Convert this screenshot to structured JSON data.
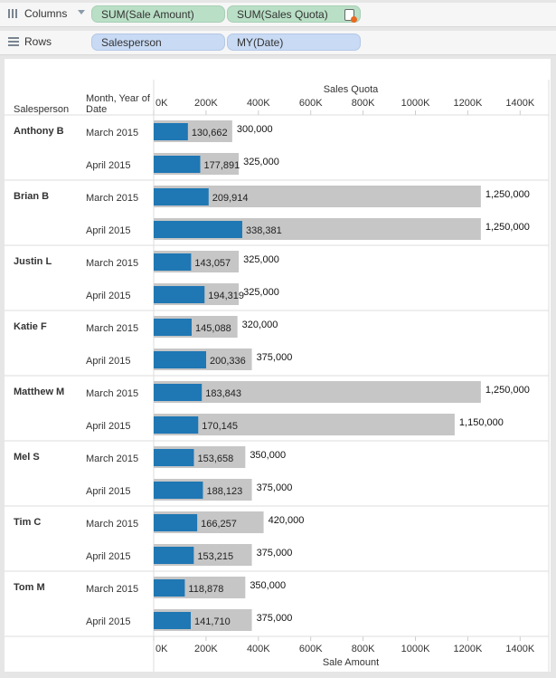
{
  "shelves": {
    "columns": {
      "label": "Columns",
      "pills": [
        "SUM(Sale Amount)",
        "SUM(Sales Quota)"
      ]
    },
    "rows": {
      "label": "Rows",
      "pills": [
        "Salesperson",
        "MY(Date)"
      ]
    }
  },
  "colors": {
    "sale": "#1f77b4",
    "quota": "#c6c6c6",
    "grid": "#dedede",
    "text": "#333333"
  },
  "headers": {
    "salesperson": "Salesperson",
    "date_line1": "Month, Year of",
    "date_line2": "Date"
  },
  "chart_data": {
    "type": "bar",
    "title": "",
    "top_axis_label": "Sales Quota",
    "bottom_axis_label": "Sale Amount",
    "xlim": [
      0,
      1450000
    ],
    "ticks": [
      0,
      200000,
      400000,
      600000,
      800000,
      1000000,
      1200000,
      1400000
    ],
    "tick_labels": [
      "0K",
      "200K",
      "400K",
      "600K",
      "800K",
      "1000K",
      "1200K",
      "1400K"
    ],
    "grid": false,
    "series": [
      {
        "name": "SUM(Sale Amount)"
      },
      {
        "name": "SUM(Sales Quota)"
      }
    ],
    "groups": [
      {
        "salesperson": "Anthony B",
        "rows": [
          {
            "date": "March 2015",
            "sale": 130662,
            "sale_label": "130,662",
            "quota": 300000,
            "quota_label": "300,000"
          },
          {
            "date": "April 2015",
            "sale": 177891,
            "sale_label": "177,891",
            "quota": 325000,
            "quota_label": "325,000"
          }
        ]
      },
      {
        "salesperson": "Brian B",
        "rows": [
          {
            "date": "March 2015",
            "sale": 209914,
            "sale_label": "209,914",
            "quota": 1250000,
            "quota_label": "1,250,000"
          },
          {
            "date": "April 2015",
            "sale": 338381,
            "sale_label": "338,381",
            "quota": 1250000,
            "quota_label": "1,250,000"
          }
        ]
      },
      {
        "salesperson": "Justin L",
        "rows": [
          {
            "date": "March 2015",
            "sale": 143057,
            "sale_label": "143,057",
            "quota": 325000,
            "quota_label": "325,000"
          },
          {
            "date": "April 2015",
            "sale": 194319,
            "sale_label": "194,319",
            "quota": 325000,
            "quota_label": "325,000"
          }
        ]
      },
      {
        "salesperson": "Katie F",
        "rows": [
          {
            "date": "March 2015",
            "sale": 145088,
            "sale_label": "145,088",
            "quota": 320000,
            "quota_label": "320,000"
          },
          {
            "date": "April 2015",
            "sale": 200336,
            "sale_label": "200,336",
            "quota": 375000,
            "quota_label": "375,000"
          }
        ]
      },
      {
        "salesperson": "Matthew M",
        "rows": [
          {
            "date": "March 2015",
            "sale": 183843,
            "sale_label": "183,843",
            "quota": 1250000,
            "quota_label": "1,250,000"
          },
          {
            "date": "April 2015",
            "sale": 170145,
            "sale_label": "170,145",
            "quota": 1150000,
            "quota_label": "1,150,000"
          }
        ]
      },
      {
        "salesperson": "Mel S",
        "rows": [
          {
            "date": "March 2015",
            "sale": 153658,
            "sale_label": "153,658",
            "quota": 350000,
            "quota_label": "350,000"
          },
          {
            "date": "April 2015",
            "sale": 188123,
            "sale_label": "188,123",
            "quota": 375000,
            "quota_label": "375,000"
          }
        ]
      },
      {
        "salesperson": "Tim C",
        "rows": [
          {
            "date": "March 2015",
            "sale": 166257,
            "sale_label": "166,257",
            "quota": 420000,
            "quota_label": "420,000"
          },
          {
            "date": "April 2015",
            "sale": 153215,
            "sale_label": "153,215",
            "quota": 375000,
            "quota_label": "375,000"
          }
        ]
      },
      {
        "salesperson": "Tom M",
        "rows": [
          {
            "date": "March 2015",
            "sale": 118878,
            "sale_label": "118,878",
            "quota": 350000,
            "quota_label": "350,000"
          },
          {
            "date": "April 2015",
            "sale": 141710,
            "sale_label": "141,710",
            "quota": 375000,
            "quota_label": "375,000"
          }
        ]
      }
    ]
  }
}
